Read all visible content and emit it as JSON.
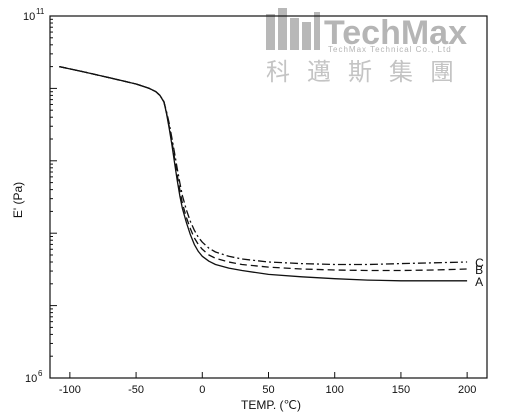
{
  "chart_data": {
    "type": "line",
    "xlabel": "TEMP. (℃)",
    "ylabel": "E' (Pa)",
    "xlim": [
      -115,
      215
    ],
    "ylim_log10": [
      6,
      11
    ],
    "yscale": "log",
    "x_ticks": [
      -100,
      -50,
      0,
      50,
      100,
      150,
      200
    ],
    "x_tick_labels": [
      "-100",
      "-50",
      "0",
      "50",
      "100",
      "150",
      "200"
    ],
    "y_ticks_log10": [
      6,
      7,
      8,
      9,
      10,
      11
    ],
    "y_tick_labels": [
      {
        "base": "10",
        "exp": "6"
      },
      {
        "base": "10",
        "exp": "11"
      }
    ],
    "grid": false,
    "series": [
      {
        "name": "A",
        "style": "solid",
        "x": [
          -108,
          -90,
          -70,
          -50,
          -40,
          -35,
          -32,
          -29,
          -27,
          -25,
          -23,
          -21,
          -19,
          -17,
          -15,
          -12,
          -9,
          -6,
          -3,
          0,
          5,
          10,
          20,
          30,
          50,
          75,
          100,
          125,
          150,
          175,
          200
        ],
        "y": [
          20000000000.0,
          17000000000.0,
          14000000000.0,
          11500000000.0,
          10000000000.0,
          9000000000.0,
          8000000000.0,
          6500000000.0,
          4500000000.0,
          2800000000.0,
          1700000000.0,
          950000000.0,
          550000000.0,
          330000000.0,
          220000000.0,
          140000000.0,
          95000000.0,
          70000000.0,
          56000000.0,
          48000000.0,
          41000000.0,
          37000000.0,
          33000000.0,
          30500000.0,
          27000000.0,
          25000000.0,
          23500000.0,
          22500000.0,
          22000000.0,
          22000000.0,
          22000000.0
        ]
      },
      {
        "name": "B",
        "style": "dashed",
        "x": [
          -108,
          -90,
          -70,
          -50,
          -40,
          -35,
          -32,
          -29,
          -27,
          -25,
          -23,
          -21,
          -19,
          -17,
          -15,
          -12,
          -9,
          -6,
          -3,
          0,
          5,
          10,
          20,
          30,
          50,
          75,
          100,
          125,
          150,
          175,
          200
        ],
        "y": [
          20000000000.0,
          17000000000.0,
          14000000000.0,
          11500000000.0,
          10000000000.0,
          9000000000.0,
          8000000000.0,
          6500000000.0,
          4600000000.0,
          3000000000.0,
          1900000000.0,
          1100000000.0,
          650000000.0,
          400000000.0,
          260000000.0,
          165000000.0,
          115000000.0,
          86000000.0,
          70000000.0,
          60000000.0,
          50000000.0,
          45000000.0,
          40000000.0,
          37000000.0,
          34000000.0,
          32000000.0,
          31000000.0,
          30500000.0,
          30500000.0,
          31000000.0,
          32000000.0
        ]
      },
      {
        "name": "C",
        "style": "dash-dot",
        "x": [
          -108,
          -90,
          -70,
          -50,
          -40,
          -35,
          -32,
          -29,
          -27,
          -25,
          -23,
          -21,
          -19,
          -17,
          -15,
          -12,
          -9,
          -6,
          -3,
          0,
          5,
          10,
          20,
          30,
          50,
          75,
          100,
          125,
          150,
          175,
          200
        ],
        "y": [
          20000000000.0,
          17000000000.0,
          14000000000.0,
          11500000000.0,
          10000000000.0,
          9000000000.0,
          8000000000.0,
          6600000000.0,
          4800000000.0,
          3300000000.0,
          2100000000.0,
          1300000000.0,
          800000000.0,
          500000000.0,
          330000000.0,
          210000000.0,
          145000000.0,
          110000000.0,
          88000000.0,
          75000000.0,
          62000000.0,
          55000000.0,
          48000000.0,
          44000000.0,
          40000000.0,
          38000000.0,
          37000000.0,
          37000000.0,
          38000000.0,
          39000000.0,
          40000000.0
        ]
      }
    ]
  },
  "watermark": {
    "name": "TechMax",
    "subtitle": "TechMax Technical Co., Ltd",
    "cjk": "科邁斯集團"
  },
  "colors": {
    "ink": "#111111",
    "watermark": "#b5b5b5"
  }
}
